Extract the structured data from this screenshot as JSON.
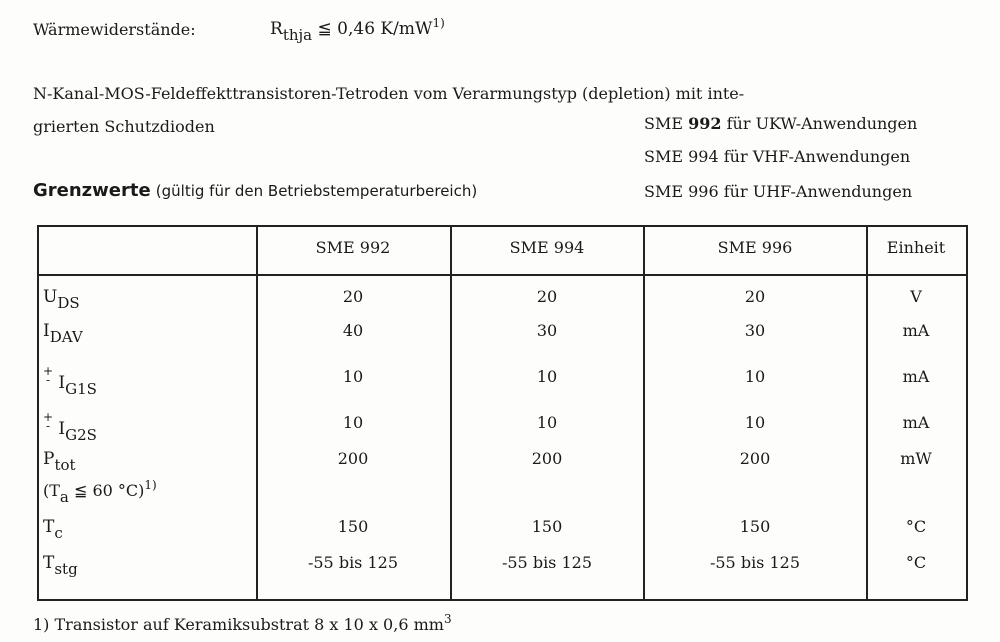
{
  "thermal": {
    "label": "Wärmewiderstände:",
    "symbol": "R",
    "sub": "thja",
    "relation": "≦",
    "value": "0,46 K/mW",
    "footnote_ref": "1)"
  },
  "intro": {
    "line1": "N-Kanal-MOS-Feldeffekttransistoren-Tetroden  vom  Verarmungstyp  (depletion)  mit  inte-",
    "line2": "grierten Schutzdioden"
  },
  "variants": [
    {
      "pre": "SME ",
      "num": "992",
      "post": " für UKW-Anwendungen"
    },
    {
      "pre": "SME ",
      "num": "994",
      "post": " für VHF-Anwendungen"
    },
    {
      "pre": "SME ",
      "num": "996",
      "post": " für UHF-Anwendungen"
    }
  ],
  "heading": {
    "title": "Grenzwerte",
    "note": "(gültig für den Betriebstemperaturbereich)"
  },
  "table": {
    "headers": [
      "SME 992",
      "SME 994",
      "SME 996",
      "Einheit"
    ],
    "rows": [
      {
        "sym": "U",
        "sub": "DS",
        "pm": false,
        "v": [
          "20",
          "20",
          "20"
        ],
        "unit": "V"
      },
      {
        "sym": "I",
        "sub": "DAV",
        "pm": false,
        "v": [
          "40",
          "30",
          "30"
        ],
        "unit": "mA"
      },
      {
        "sym": "I",
        "sub": "G1S",
        "pm": true,
        "v": [
          "10",
          "10",
          "10"
        ],
        "unit": "mA"
      },
      {
        "sym": "I",
        "sub": "G2S",
        "pm": true,
        "v": [
          "10",
          "10",
          "10"
        ],
        "unit": "mA"
      },
      {
        "sym": "P",
        "sub": "tot",
        "pm": false,
        "v": [
          "200",
          "200",
          "200"
        ],
        "unit": "mW"
      },
      {
        "sym": "T",
        "sub": "c",
        "pm": false,
        "v": [
          "150",
          "150",
          "150"
        ],
        "unit": "°C"
      },
      {
        "sym": "T",
        "sub": "stg",
        "pm": false,
        "v": [
          "-55 bis 125",
          "-55 bis 125",
          "-55 bis 125"
        ],
        "unit": "°C"
      }
    ],
    "ptot_condition": {
      "open": "(T",
      "sub": "a",
      "rest": " ≦ 60 °C)",
      "ref": "1)"
    }
  },
  "footnote": {
    "text": "1) Transistor auf Keramiksubstrat 8 x 10 x 0,6 mm",
    "sup": "3"
  }
}
